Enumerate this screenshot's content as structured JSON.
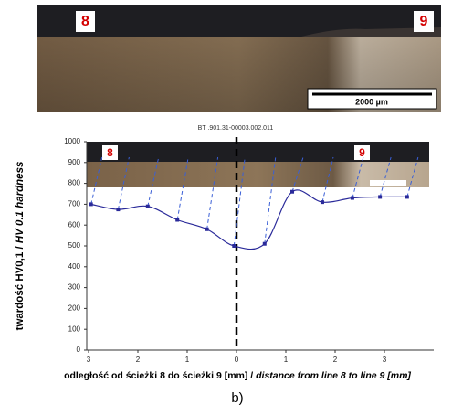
{
  "micrograph": {
    "left_label": "8",
    "right_label": "9",
    "scale_bar": "2000 µm"
  },
  "chart_data": {
    "type": "line",
    "title": "BT .901.31-00003.002.011",
    "y_label": "twardość HV0,1 / ",
    "y_label_en": "HV 0.1 hardness",
    "x_label": "odległość od ścieżki 8 do ścieżki 9 [mm] / ",
    "x_label_en": "distance from line 8 to line 9 [mm]",
    "inset_left_label": "8",
    "inset_right_label": "9",
    "xlim": [
      -3,
      4
    ],
    "ylim": [
      0,
      1000
    ],
    "xticks": [
      {
        "value": -3,
        "label": "3"
      },
      {
        "value": -2,
        "label": "2"
      },
      {
        "value": -1,
        "label": "1"
      },
      0,
      1,
      2,
      3
    ],
    "yticks": [
      0,
      100,
      200,
      300,
      400,
      500,
      600,
      700,
      800,
      900,
      1000
    ],
    "series": [
      {
        "color": "#2a2a9a",
        "x": [
          -2.95,
          -2.4,
          -1.8,
          -1.2,
          -0.6,
          -0.05,
          0.57,
          1.13,
          1.74,
          2.35,
          2.91,
          3.46
        ],
        "values": [
          700,
          675,
          690,
          625,
          580,
          500,
          510,
          760,
          710,
          730,
          735,
          735
        ]
      }
    ]
  },
  "caption": "b)"
}
